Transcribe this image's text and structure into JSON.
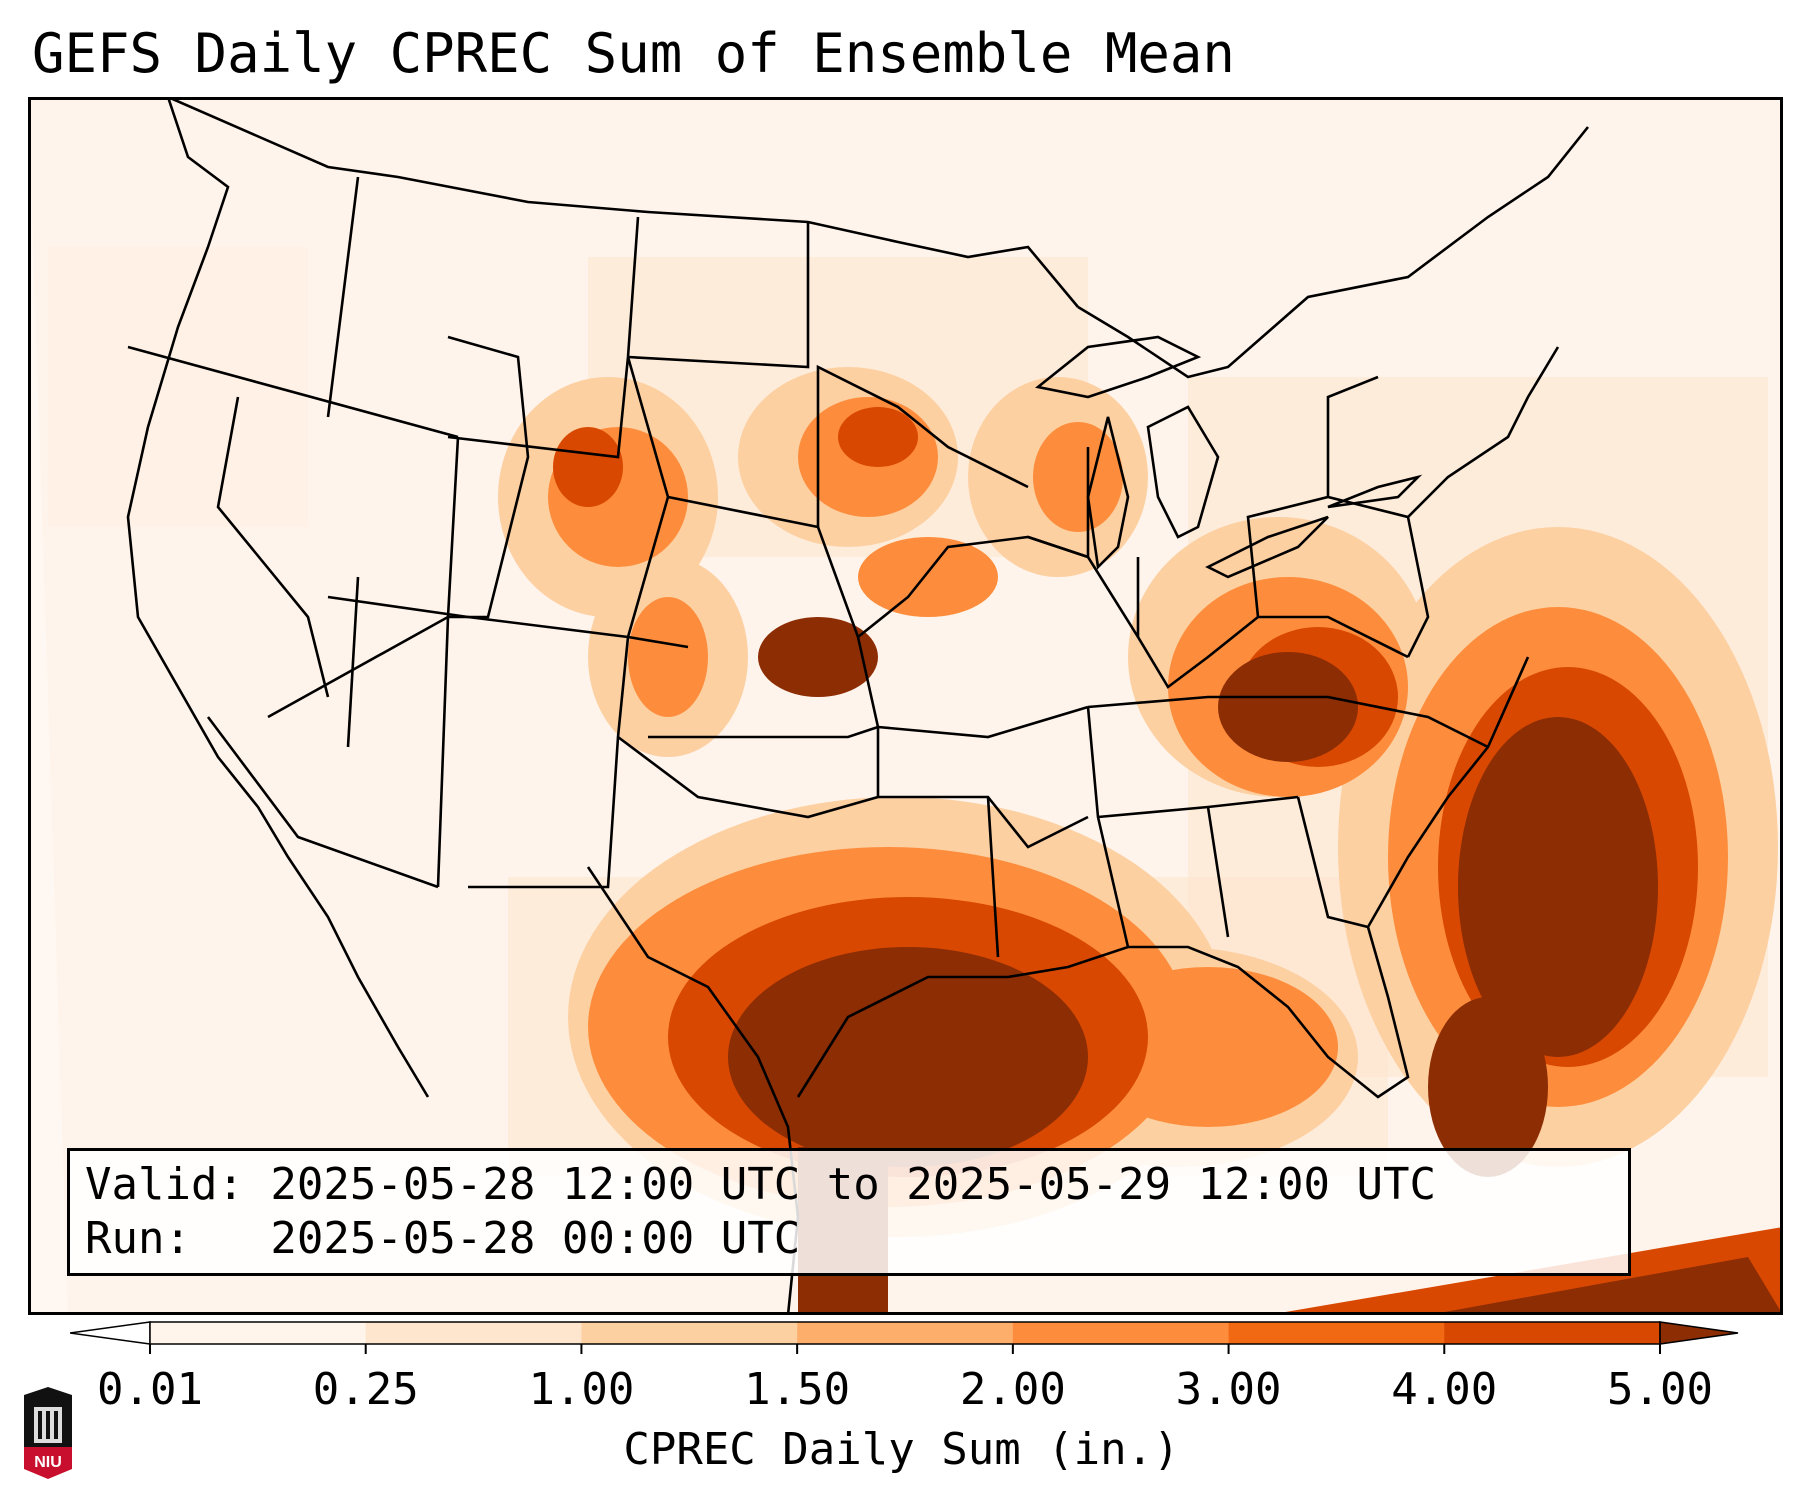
{
  "title": "GEFS Daily CPREC Sum of Ensemble Mean",
  "info": {
    "valid_line": "Valid: 2025-05-28 12:00 UTC to 2025-05-29 12:00 UTC",
    "run_line": "Run:   2025-05-28 00:00 UTC"
  },
  "colorbar": {
    "label": "CPREC Daily Sum (in.)",
    "ticks": [
      "0.01",
      "0.25",
      "1.00",
      "1.50",
      "2.00",
      "3.00",
      "4.00",
      "5.00"
    ],
    "colors": [
      "#fff5eb",
      "#fee6ce",
      "#fdd0a2",
      "#fdae6b",
      "#fd8d3c",
      "#f16913",
      "#d94801",
      "#8c2d04"
    ],
    "extend_low_color": "#ffffff",
    "extend_high_color": "#8c2d04"
  },
  "logo": {
    "text": "NIU",
    "colors": {
      "red": "#c8102e",
      "black": "#111111"
    }
  }
}
